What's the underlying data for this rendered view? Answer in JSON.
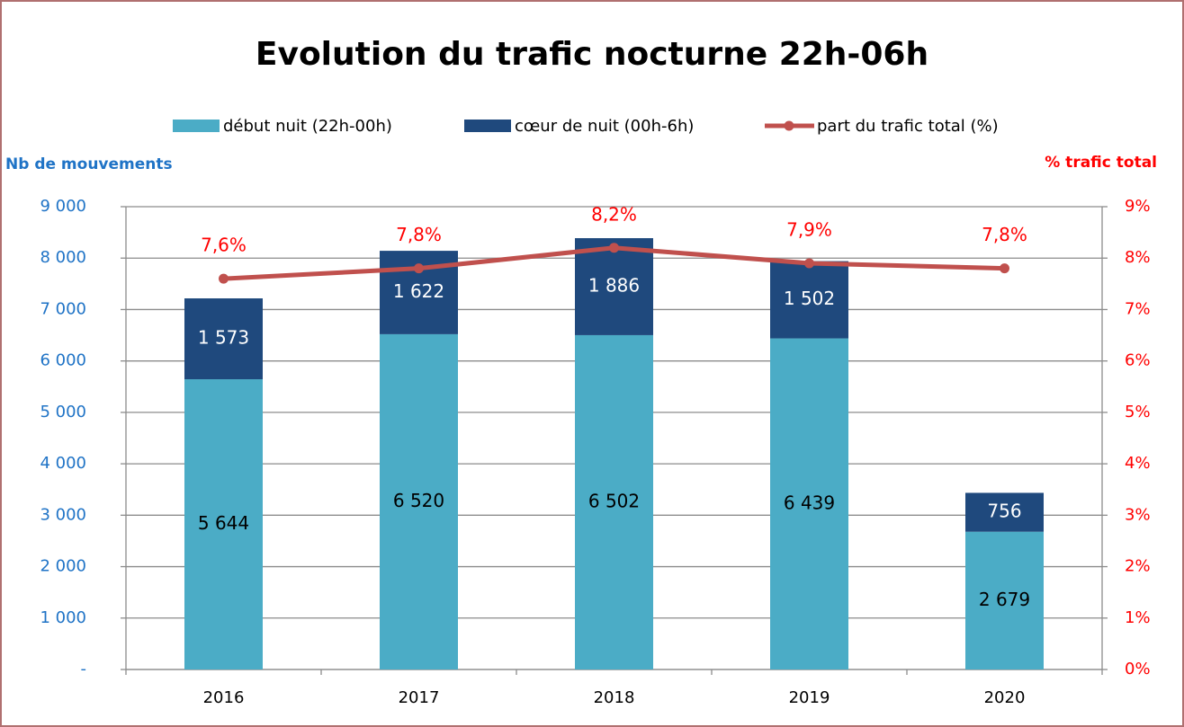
{
  "chart_data": {
    "type": "bar",
    "title": "Evolution du trafic nocturne 22h-06h",
    "y_label": "Nb de mouvements",
    "y2_label": "% trafic total",
    "categories": [
      "2016",
      "2017",
      "2018",
      "2019",
      "2020"
    ],
    "stacked": true,
    "series": [
      {
        "name": "début nuit (22h-00h)",
        "type": "bar",
        "color": "#4bacc6",
        "values": [
          5644,
          6520,
          6502,
          6439,
          2679
        ],
        "value_labels": [
          "5 644",
          "6 520",
          "6 502",
          "6 439",
          "2 679"
        ]
      },
      {
        "name": "cœur de nuit (00h-6h)",
        "type": "bar",
        "color": "#1f497d",
        "values": [
          1573,
          1622,
          1886,
          1502,
          756
        ],
        "value_labels": [
          "1 573",
          "1 622",
          "1 886",
          "1 502",
          "756"
        ]
      },
      {
        "name": "part du trafic total (%)",
        "type": "line",
        "axis": "y2",
        "color": "#c0504d",
        "values": [
          7.6,
          7.8,
          8.2,
          7.9,
          7.8
        ],
        "value_labels": [
          "7,6%",
          "7,8%",
          "8,2%",
          "7,9%",
          "7,8%"
        ]
      }
    ],
    "ylim": [
      0,
      9000
    ],
    "yticks": [
      {
        "value": 0,
        "label": "-"
      },
      {
        "value": 1000,
        "label": "1 000"
      },
      {
        "value": 2000,
        "label": "2 000"
      },
      {
        "value": 3000,
        "label": "3 000"
      },
      {
        "value": 4000,
        "label": "4 000"
      },
      {
        "value": 5000,
        "label": "5 000"
      },
      {
        "value": 6000,
        "label": "6 000"
      },
      {
        "value": 7000,
        "label": "7 000"
      },
      {
        "value": 8000,
        "label": "8 000"
      },
      {
        "value": 9000,
        "label": "9 000"
      }
    ],
    "y2lim": [
      0,
      9
    ],
    "y2ticks": [
      {
        "value": 0,
        "label": "0%"
      },
      {
        "value": 1,
        "label": "1%"
      },
      {
        "value": 2,
        "label": "2%"
      },
      {
        "value": 3,
        "label": "3%"
      },
      {
        "value": 4,
        "label": "4%"
      },
      {
        "value": 5,
        "label": "5%"
      },
      {
        "value": 6,
        "label": "6%"
      },
      {
        "value": 7,
        "label": "7%"
      },
      {
        "value": 8,
        "label": "8%"
      },
      {
        "value": 9,
        "label": "9%"
      }
    ],
    "grid": true,
    "legend": "top"
  }
}
